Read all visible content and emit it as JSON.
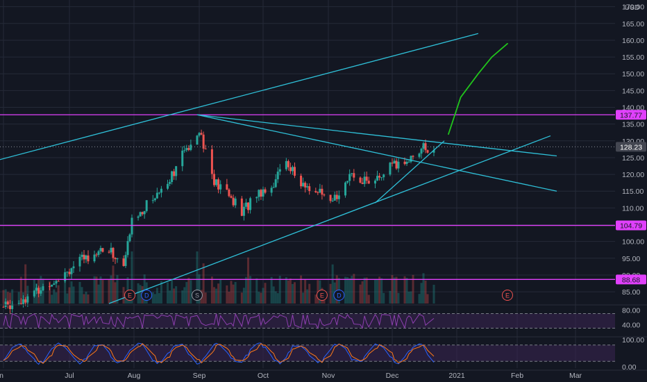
{
  "currency": "USD",
  "colors": {
    "background": "#131722",
    "grid": "#242a38",
    "up": "#26a69a",
    "down": "#ef5350",
    "trendline": "#2fc1d9",
    "level_line": "#e040fb",
    "projection": "#21c51c",
    "rsi_line": "#8e3fb0",
    "rsi_fill": "#3a2452",
    "stoch_k": "#2962ff",
    "stoch_d": "#ff7a1a",
    "stoch_fill": "#3a2452",
    "axis_text": "#b2b5be"
  },
  "price_axis": {
    "ticks": [
      "170.00",
      "165.00",
      "160.00",
      "155.00",
      "150.00",
      "145.00",
      "140.00",
      "135.00",
      "130.00",
      "125.00",
      "120.00",
      "115.00",
      "110.00",
      "105.00",
      "100.00",
      "95.00",
      "90.00",
      "85.00"
    ],
    "range": [
      81.5,
      172
    ]
  },
  "rsi_axis": {
    "ticks": [
      "80.00",
      "40.00"
    ],
    "levels": [
      70,
      30
    ]
  },
  "stoch_axis": {
    "ticks": [
      "100.00",
      "0.00"
    ],
    "levels": [
      80,
      20
    ]
  },
  "time_axis": {
    "labels": [
      "Jun",
      "Jul",
      "Aug",
      "Sep",
      "Oct",
      "Nov",
      "Dec",
      "2021",
      "Feb",
      "Mar"
    ]
  },
  "price_labels": {
    "current": "128.23",
    "levels": [
      {
        "value": 137.77,
        "label": "137.77"
      },
      {
        "value": 104.79,
        "label": "104.79"
      },
      {
        "value": 88.68,
        "label": "88.68"
      }
    ]
  },
  "event_markers": [
    {
      "label": "E",
      "kind": "earnings",
      "date": "2020-07-30"
    },
    {
      "label": "D",
      "kind": "dividend",
      "date": "2020-08-07"
    },
    {
      "label": "S",
      "kind": "split",
      "date": "2020-08-31"
    },
    {
      "label": "E",
      "kind": "earnings",
      "date": "2020-10-29"
    },
    {
      "label": "D",
      "kind": "dividend",
      "date": "2020-11-06"
    },
    {
      "label": "E",
      "kind": "earnings",
      "date": "2021-01-27"
    }
  ],
  "chart_data": {
    "type": "candlestick",
    "currency": "USD",
    "price_range": [
      81.5,
      172
    ],
    "last_price": 128.23,
    "horizontal_levels": [
      137.77,
      104.79,
      88.68
    ],
    "closes": [
      {
        "date": "2020-06-01",
        "close": 80.5
      },
      {
        "date": "2020-06-15",
        "close": 84.5
      },
      {
        "date": "2020-06-29",
        "close": 91.0
      },
      {
        "date": "2020-07-13",
        "close": 97.0
      },
      {
        "date": "2020-07-20",
        "close": 97.5
      },
      {
        "date": "2020-07-27",
        "close": 92.5
      },
      {
        "date": "2020-07-31",
        "close": 106.0
      },
      {
        "date": "2020-08-10",
        "close": 113.0
      },
      {
        "date": "2020-08-17",
        "close": 118.0
      },
      {
        "date": "2020-08-24",
        "close": 125.5
      },
      {
        "date": "2020-09-01",
        "close": 134.0
      },
      {
        "date": "2020-09-08",
        "close": 117.5
      },
      {
        "date": "2020-09-15",
        "close": 114.0
      },
      {
        "date": "2020-09-21",
        "close": 108.5
      },
      {
        "date": "2020-09-28",
        "close": 114.5
      },
      {
        "date": "2020-10-05",
        "close": 116.5
      },
      {
        "date": "2020-10-12",
        "close": 124.5
      },
      {
        "date": "2020-10-19",
        "close": 116.5
      },
      {
        "date": "2020-10-26",
        "close": 115.5
      },
      {
        "date": "2020-11-02",
        "close": 110.5
      },
      {
        "date": "2020-11-09",
        "close": 118.5
      },
      {
        "date": "2020-11-16",
        "close": 119.0
      },
      {
        "date": "2020-11-23",
        "close": 117.5
      },
      {
        "date": "2020-11-30",
        "close": 122.0
      },
      {
        "date": "2020-12-07",
        "close": 123.5
      },
      {
        "date": "2020-12-14",
        "close": 127.5
      },
      {
        "date": "2020-12-21",
        "close": 128.23
      }
    ],
    "trendlines": [
      {
        "from": {
          "date": "2020-05-28",
          "price": 124
        },
        "to": {
          "date": "2021-01-12",
          "price": 162
        }
      },
      {
        "from": {
          "date": "2020-08-31",
          "price": 137.77
        },
        "to": {
          "date": "2021-02-20",
          "price": 125.5
        }
      },
      {
        "from": {
          "date": "2020-08-31",
          "price": 137.77
        },
        "to": {
          "date": "2021-02-20",
          "price": 115
        }
      },
      {
        "from": {
          "date": "2020-07-20",
          "price": 81.5
        },
        "to": {
          "date": "2021-02-17",
          "price": 131.5
        }
      },
      {
        "from": {
          "date": "2020-11-23",
          "price": 111.5
        },
        "to": {
          "date": "2020-12-26",
          "price": 130
        }
      }
    ],
    "projection": [
      {
        "date": "2020-12-28",
        "price": 132
      },
      {
        "date": "2021-01-03",
        "price": 143
      },
      {
        "date": "2021-01-12",
        "price": 150
      },
      {
        "date": "2021-01-19",
        "price": 155
      },
      {
        "date": "2021-01-27",
        "price": 159
      }
    ],
    "indicators": {
      "rsi": {
        "levels": [
          70,
          30
        ]
      },
      "stochastic": {
        "levels": [
          80,
          20
        ]
      }
    }
  }
}
